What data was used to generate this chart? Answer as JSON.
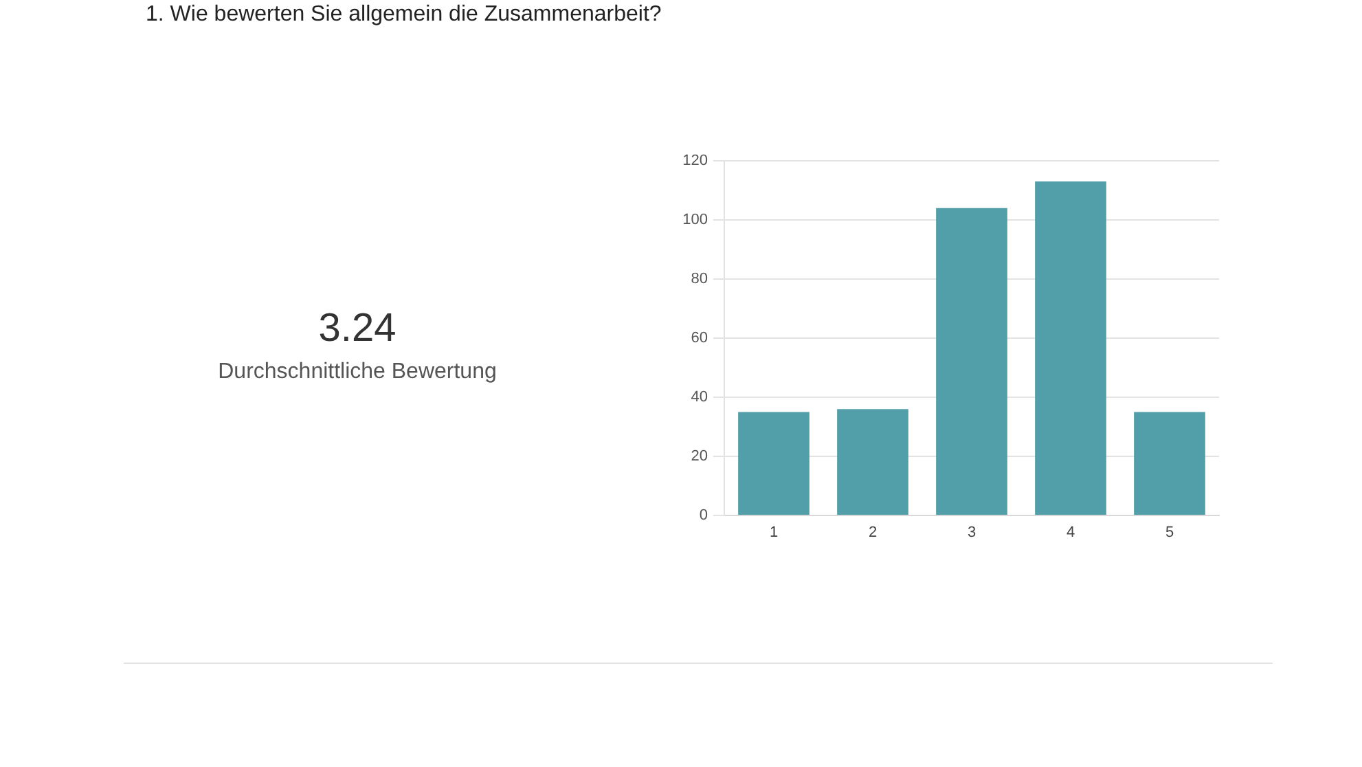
{
  "chart_data": {
    "type": "bar",
    "title": "1. Wie bewerten Sie allgemein die Zusammenarbeit?",
    "annotations": [
      "3.24",
      "Durchschnittliche Bewertung"
    ],
    "categories": [
      "1",
      "2",
      "3",
      "4",
      "5"
    ],
    "values": [
      35,
      36,
      104,
      113,
      35
    ],
    "color": "#529ea9",
    "ylim": [
      0,
      120
    ],
    "yticks": [
      0,
      20,
      40,
      60,
      80,
      100,
      120
    ],
    "grid": "y"
  }
}
